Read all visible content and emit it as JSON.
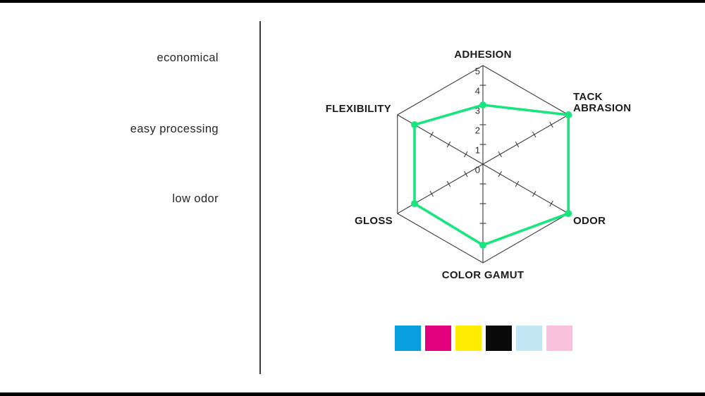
{
  "page": {
    "background": "#ffffff",
    "letterbox_color": "#000000"
  },
  "left_panel": {
    "labels": [
      "economical",
      "easy processing",
      "low odor"
    ]
  },
  "chart_data": {
    "type": "radar",
    "title": "",
    "categories": [
      "ADHESION",
      "TACK\nABRASION",
      "ODOR",
      "COLOR GAMUT",
      "GLOSS",
      "FLEXIBILITY"
    ],
    "values": [
      3,
      5,
      5,
      4.1,
      4,
      4
    ],
    "min": 0,
    "max": 5,
    "tick_interval": 1,
    "scale_labels": [
      5,
      4,
      3,
      2,
      1,
      0
    ],
    "series_color": "#18e57d",
    "grid_color": "#3b3b3b",
    "grid_shape": "hexagon",
    "legend_position": "none"
  },
  "swatches": [
    {
      "name": "cyan",
      "color": "#089fe1"
    },
    {
      "name": "magenta",
      "color": "#e2007d"
    },
    {
      "name": "yellow",
      "color": "#ffec00"
    },
    {
      "name": "black",
      "color": "#0a0a0a"
    },
    {
      "name": "light-cyan",
      "color": "#c3e6f5"
    },
    {
      "name": "light-pink",
      "color": "#f8c0da"
    }
  ]
}
